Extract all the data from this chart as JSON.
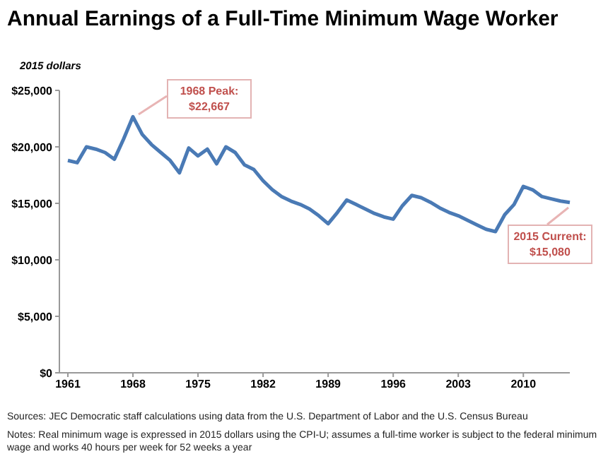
{
  "chart_data": {
    "type": "line",
    "title": "Annual Earnings of a Full-Time Minimum Wage Worker",
    "ylabel": "2015 dollars",
    "categories": [
      "1961",
      null,
      null,
      null,
      null,
      null,
      null,
      "1968",
      null,
      null,
      null,
      null,
      null,
      null,
      "1975",
      null,
      null,
      null,
      null,
      null,
      null,
      "1982",
      null,
      null,
      null,
      null,
      null,
      null,
      "1989",
      null,
      null,
      null,
      null,
      null,
      null,
      "1996",
      null,
      null,
      null,
      null,
      null,
      null,
      "2003",
      null,
      null,
      null,
      null,
      null,
      null,
      "2010",
      null,
      null,
      null,
      null,
      null
    ],
    "series": [
      {
        "color": "#4a7ab5",
        "values": [
          18800,
          18600,
          20000,
          19800,
          19500,
          18900,
          20700,
          22667,
          21100,
          20200,
          19500,
          18800,
          17700,
          19900,
          19200,
          19800,
          18500,
          20000,
          19500,
          18400,
          18000,
          17000,
          16200,
          15600,
          15200,
          14900,
          14500,
          13900,
          13200,
          14200,
          15300,
          14900,
          14500,
          14100,
          13800,
          13600,
          14800,
          15700,
          15500,
          15100,
          14600,
          14200,
          13900,
          13500,
          13100,
          12700,
          12500,
          14000,
          14900,
          16500,
          16200,
          15600,
          15400,
          15200,
          15080
        ]
      }
    ],
    "ylim": [
      0,
      25000
    ],
    "yticks": [
      {
        "value": 0,
        "label": "$0"
      },
      {
        "value": 5000,
        "label": "$5,000"
      },
      {
        "value": 10000,
        "label": "$10,000"
      },
      {
        "value": 15000,
        "label": "$15,000"
      },
      {
        "value": 20000,
        "label": "$20,000"
      },
      {
        "value": 25000,
        "label": "$25,000"
      }
    ],
    "marker": "none",
    "line_style": "solid",
    "annotations": [
      {
        "text": "1968 Peak: $22,667",
        "x": "1968",
        "y": 22667
      },
      {
        "text": "2015 Current: $15,080",
        "y": 15080
      },
      "Sources: JEC Democratic staff calculations using data from the U.S. Department of Labor and the U.S. Census Bureau",
      "Notes: Real minimum wage is expressed in 2015 dollars using the CPI-U; assumes a full-time worker is subject to the federal minimum wage and works 40 hours per week for 52 weeks a year"
    ]
  }
}
